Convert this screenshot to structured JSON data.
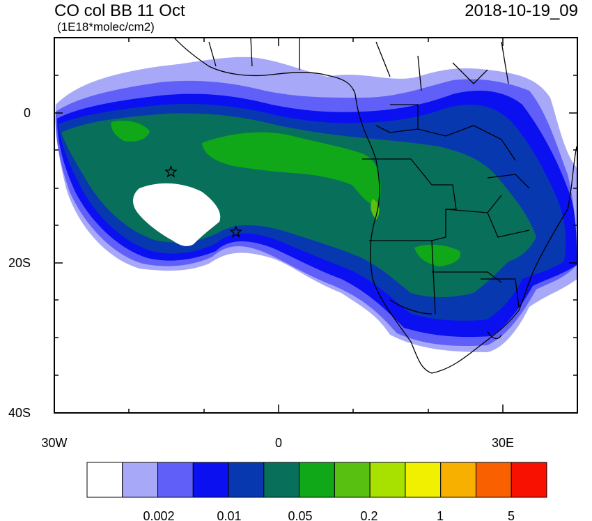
{
  "title": "CO col BB 11 Oct",
  "units": "(1E18*molec/cm2)",
  "datetime": "2018-10-19_09",
  "y_ticks": [
    "0",
    "20S",
    "40S"
  ],
  "x_ticks": [
    "30W",
    "0",
    "30E"
  ],
  "map": {
    "lon_range": [
      -30,
      40
    ],
    "lat_range": [
      -40,
      10
    ],
    "markers": [
      {
        "type": "star",
        "lon": -14.4,
        "lat": -7.9
      },
      {
        "type": "star",
        "lon": -5.7,
        "lat": -15.9
      }
    ]
  },
  "colorbar": {
    "colors": [
      "#ffffff",
      "#a8a8f8",
      "#6060f8",
      "#0a10f0",
      "#0838b0",
      "#08705a",
      "#10a818",
      "#58c010",
      "#a8e000",
      "#f0f000",
      "#f8b000",
      "#f86000",
      "#f81000"
    ],
    "labels": [
      "0.002",
      "0.01",
      "0.05",
      "0.2",
      "1",
      "5"
    ]
  }
}
